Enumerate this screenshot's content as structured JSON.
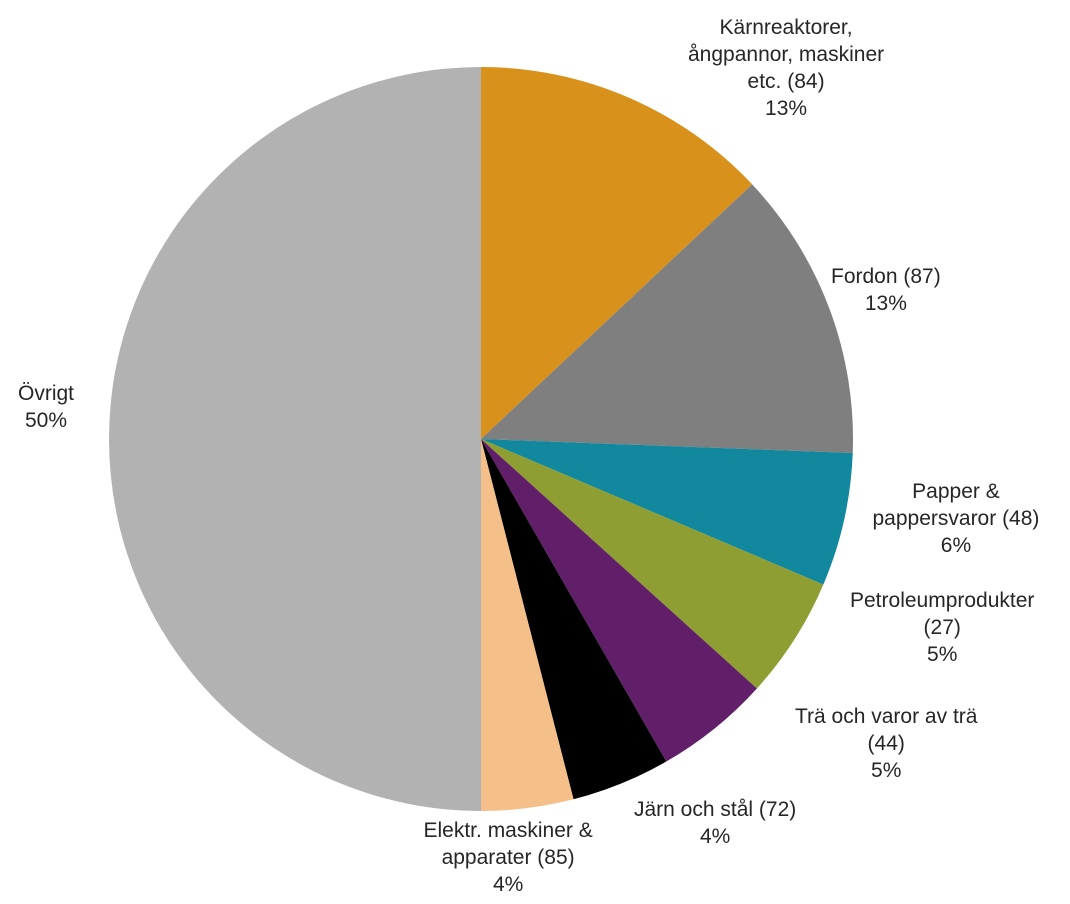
{
  "chart_data": {
    "type": "pie",
    "title": "",
    "start": "12 o'clock, clockwise",
    "slices": [
      {
        "label": "Kärnreaktorer, ångpannor, maskiner etc. (84)",
        "label_lines": [
          "Kärnreaktorer,",
          "ångpannor, maskiner",
          "etc. (84)"
        ],
        "percent_label": "13%",
        "value": 13.0,
        "color": "#D8911A"
      },
      {
        "label": "Fordon (87)",
        "label_lines": [
          "Fordon (87)"
        ],
        "percent_label": "13%",
        "value": 12.6,
        "color": "#7F7F7F"
      },
      {
        "label": "Papper & pappersvaror (48)",
        "label_lines": [
          "Papper &",
          "pappersvaror (48)"
        ],
        "percent_label": "6%",
        "value": 5.8,
        "color": "#11889E"
      },
      {
        "label": "Petroleumprodukter (27)",
        "label_lines": [
          "Petroleumprodukter",
          "(27)"
        ],
        "percent_label": "5%",
        "value": 5.3,
        "color": "#8F9E32"
      },
      {
        "label": "Trä och varor av trä (44)",
        "label_lines": [
          "Trä och varor av trä",
          "(44)"
        ],
        "percent_label": "5%",
        "value": 5.0,
        "color": "#621F69"
      },
      {
        "label": "Järn och stål (72)",
        "label_lines": [
          "Järn och stål (72)"
        ],
        "percent_label": "4%",
        "value": 4.3,
        "color": "#000000"
      },
      {
        "label": "Elektr. maskiner & apparater (85)",
        "label_lines": [
          "Elektr. maskiner &",
          "apparater (85)"
        ],
        "percent_label": "4%",
        "value": 4.0,
        "color": "#F5BF89"
      },
      {
        "label": "Övrigt",
        "label_lines": [
          "Övrigt"
        ],
        "percent_label": "50%",
        "value": 50.0,
        "color": "#B2B2B2"
      }
    ]
  }
}
